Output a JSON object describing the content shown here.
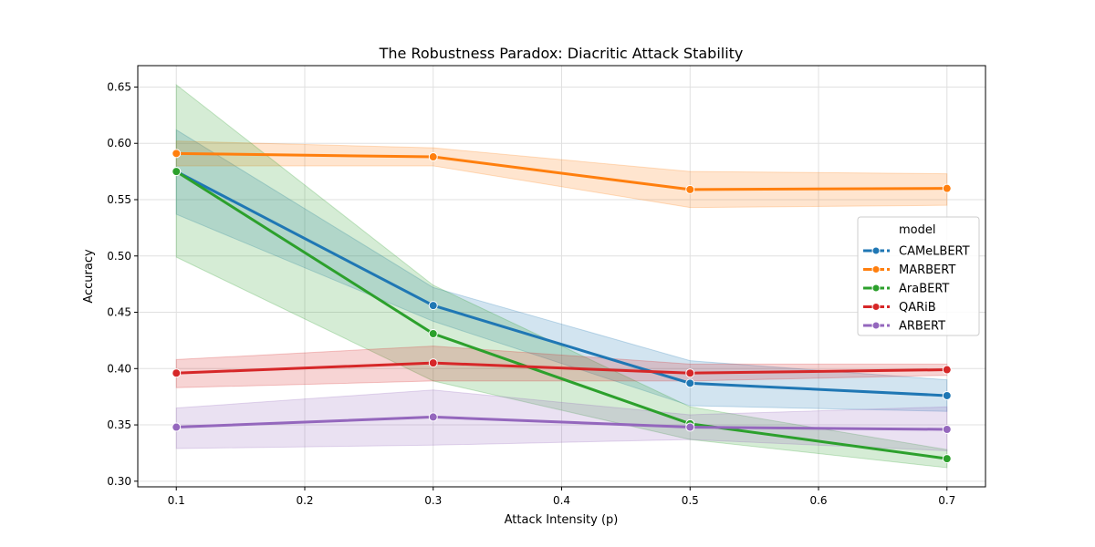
{
  "chart_data": {
    "type": "line",
    "title": "The Robustness Paradox: Diacritic Attack Stability",
    "xlabel": "Attack Intensity (p)",
    "ylabel": "Accuracy",
    "x": [
      0.1,
      0.3,
      0.5,
      0.7
    ],
    "xlim": [
      0.07,
      0.73
    ],
    "ylim": [
      0.295,
      0.669
    ],
    "xticks": [
      0.1,
      0.2,
      0.3,
      0.4,
      0.5,
      0.6,
      0.7
    ],
    "xtick_labels": [
      "0.1",
      "0.2",
      "0.3",
      "0.4",
      "0.5",
      "0.6",
      "0.7"
    ],
    "yticks": [
      0.3,
      0.35,
      0.4,
      0.45,
      0.5,
      0.55,
      0.6,
      0.65
    ],
    "ytick_labels": [
      "0.30",
      "0.35",
      "0.40",
      "0.45",
      "0.50",
      "0.55",
      "0.60",
      "0.65"
    ],
    "grid": true,
    "legend": {
      "title": "model",
      "placement": "right"
    },
    "series": [
      {
        "name": "CAMeLBERT",
        "color": "#1f77b4",
        "values": [
          0.575,
          0.456,
          0.387,
          0.376
        ],
        "ci_low": [
          0.537,
          0.442,
          0.367,
          0.362
        ],
        "ci_high": [
          0.612,
          0.472,
          0.407,
          0.39
        ]
      },
      {
        "name": "MARBERT",
        "color": "#ff7f0e",
        "values": [
          0.591,
          0.588,
          0.559,
          0.56
        ],
        "ci_low": [
          0.58,
          0.58,
          0.543,
          0.545
        ],
        "ci_high": [
          0.602,
          0.596,
          0.575,
          0.573
        ]
      },
      {
        "name": "AraBERT",
        "color": "#2ca02c",
        "values": [
          0.575,
          0.431,
          0.351,
          0.32
        ],
        "ci_low": [
          0.499,
          0.389,
          0.337,
          0.312
        ],
        "ci_high": [
          0.652,
          0.474,
          0.366,
          0.328
        ]
      },
      {
        "name": "QARiB",
        "color": "#d62728",
        "values": [
          0.396,
          0.405,
          0.396,
          0.399
        ],
        "ci_low": [
          0.383,
          0.389,
          0.389,
          0.394
        ],
        "ci_high": [
          0.408,
          0.42,
          0.404,
          0.404
        ]
      },
      {
        "name": "ARBERT",
        "color": "#9467bd",
        "values": [
          0.348,
          0.357,
          0.348,
          0.346
        ],
        "ci_low": [
          0.329,
          0.332,
          0.337,
          0.327
        ],
        "ci_high": [
          0.365,
          0.381,
          0.359,
          0.366
        ]
      }
    ]
  }
}
